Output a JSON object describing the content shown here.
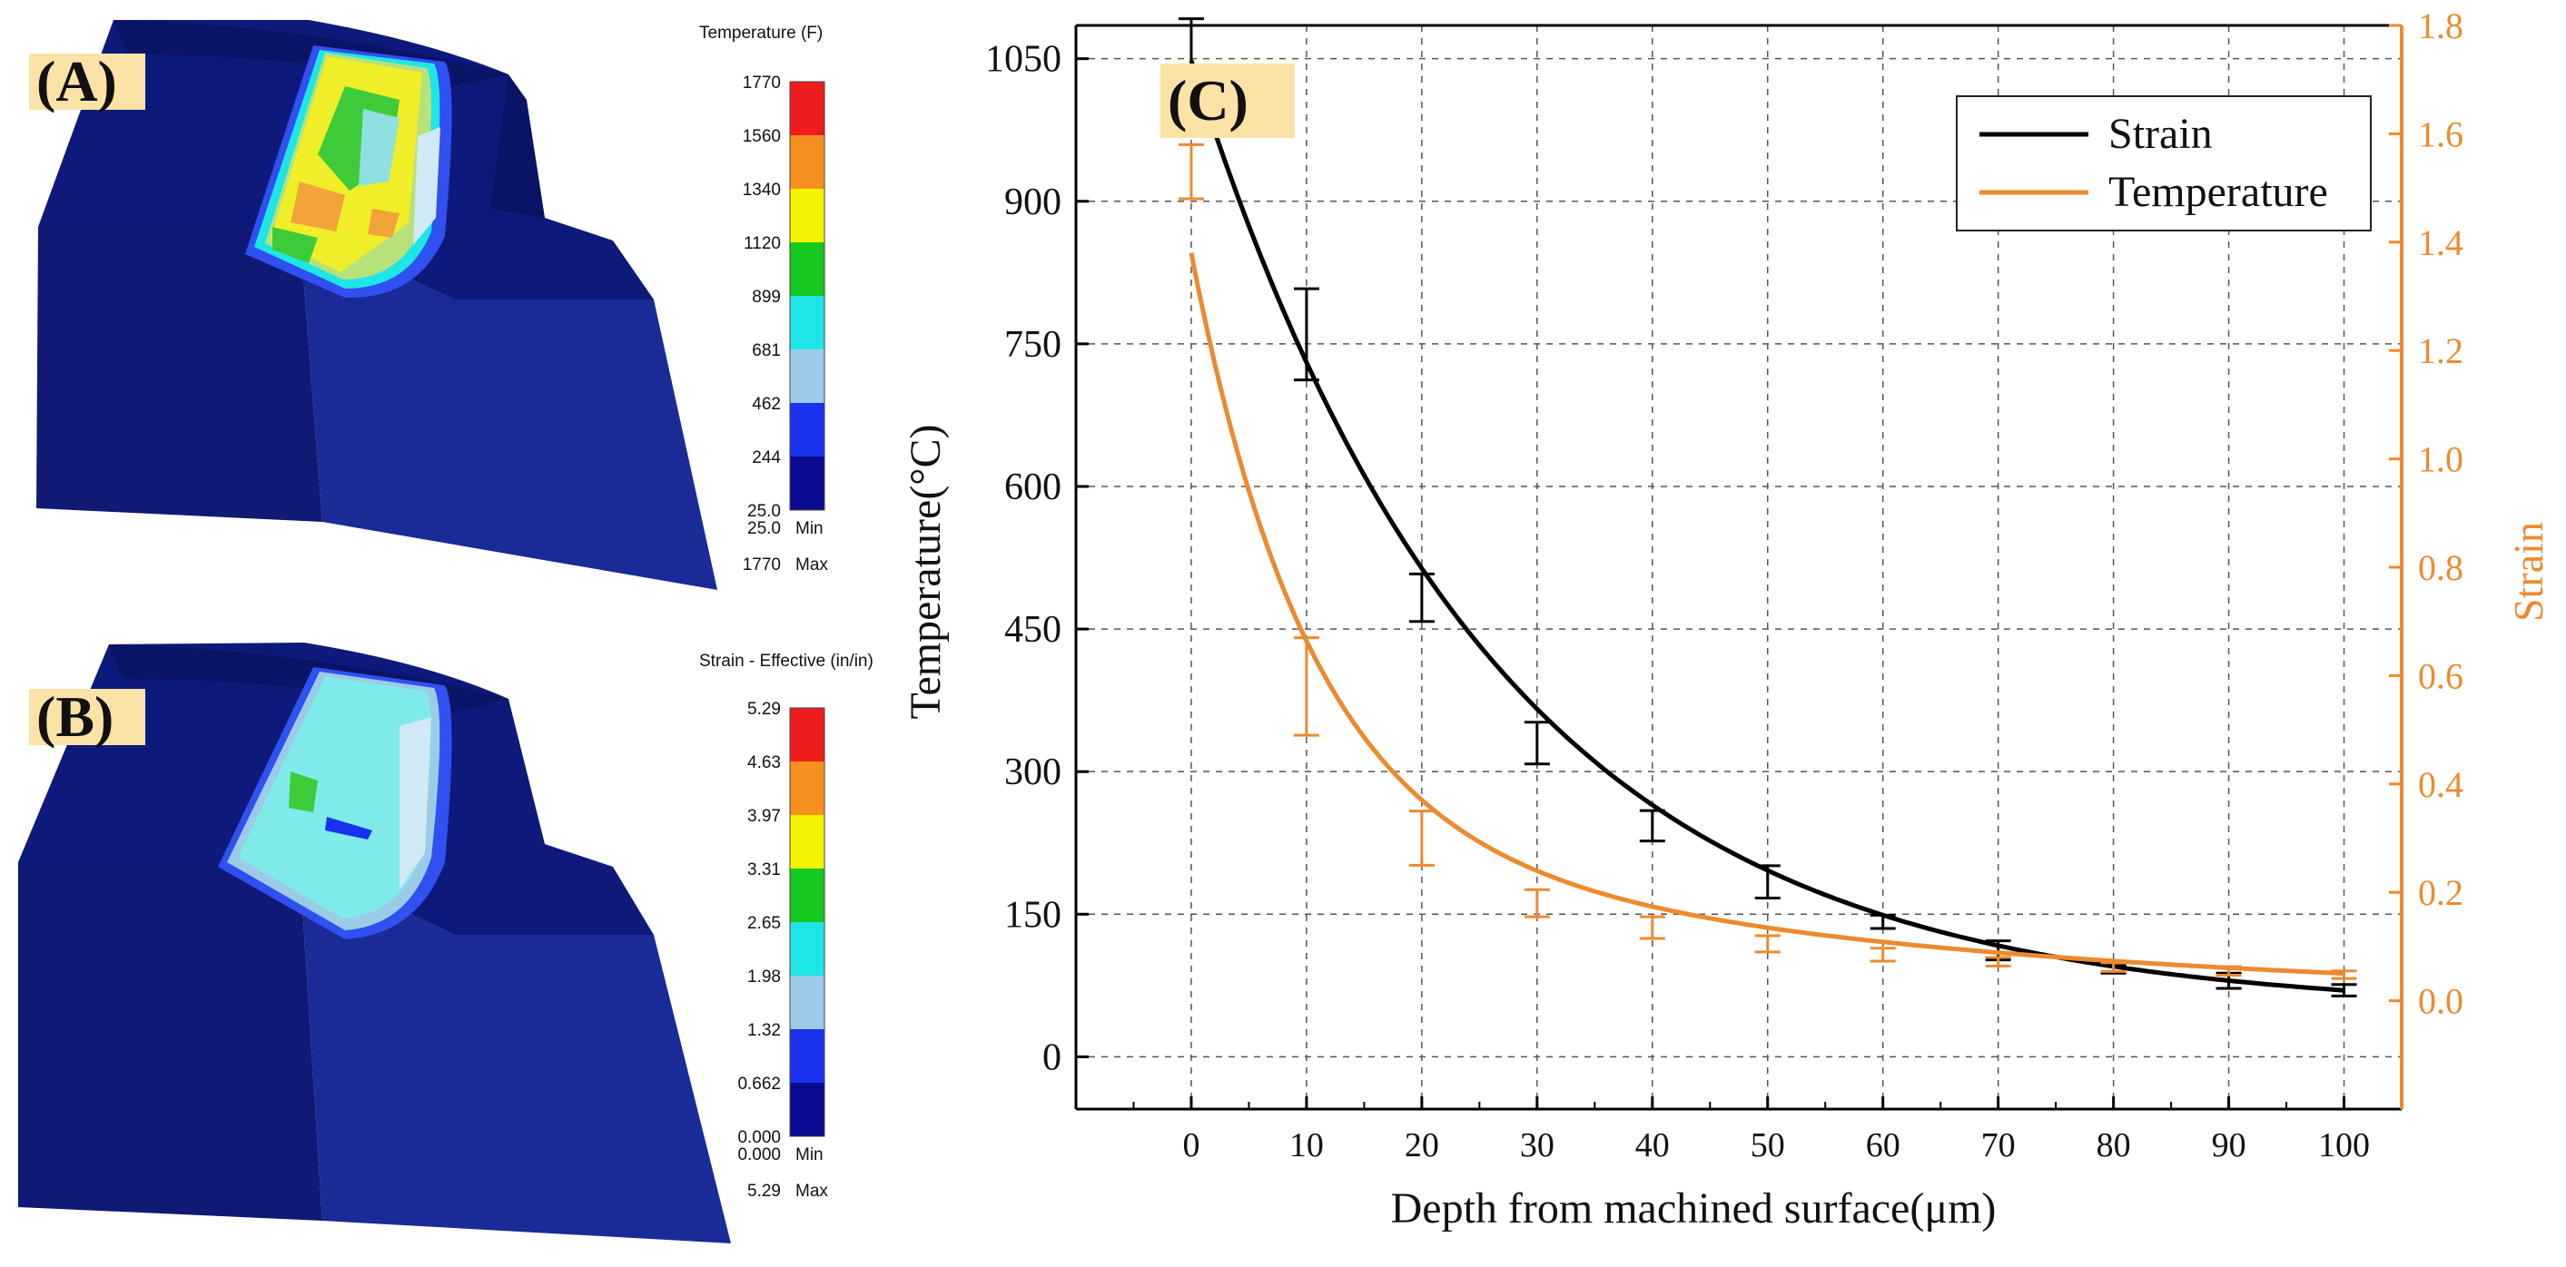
{
  "panels": {
    "a": {
      "label": "(A)",
      "legend_title": "Temperature (F)",
      "ticks": [
        "1770",
        "1560",
        "1340",
        "1120",
        "899",
        "681",
        "462",
        "244",
        "25.0"
      ],
      "min_value": "25.0",
      "min_label": "Min",
      "max_value": "1770",
      "max_label": "Max",
      "colors": [
        "#ee1c1c",
        "#f7901e",
        "#f4f400",
        "#14c81e",
        "#1ee6e6",
        "#9bcbe6",
        "#1a32ee",
        "#0a0a90"
      ]
    },
    "b": {
      "label": "(B)",
      "legend_title": "Strain - Effective (in/in)",
      "ticks": [
        "5.29",
        "4.63",
        "3.97",
        "3.31",
        "2.65",
        "1.98",
        "1.32",
        "0.662",
        "0.000"
      ],
      "min_value": "0.000",
      "min_label": "Min",
      "max_value": "5.29",
      "max_label": "Max",
      "colors": [
        "#ee1c1c",
        "#f7901e",
        "#f4f400",
        "#14c81e",
        "#1ee6e6",
        "#9bcbe6",
        "#1a32ee",
        "#0a0a90"
      ]
    },
    "c": {
      "label": "(C)"
    }
  },
  "chart_data": {
    "type": "line",
    "panel": "(C)",
    "xlabel": "Depth from machined surface(μm)",
    "ylabel": "Temperature(°C)",
    "y2label": "Strain",
    "x": [
      0,
      10,
      20,
      30,
      40,
      50,
      60,
      70,
      80,
      90,
      100
    ],
    "xlim": [
      -10,
      105
    ],
    "ylim": [
      -55,
      1085
    ],
    "y2lim": [
      -0.2,
      1.8
    ],
    "yticks": [
      0,
      150,
      300,
      450,
      600,
      750,
      900,
      1050
    ],
    "y2ticks": [
      0.0,
      0.2,
      0.4,
      0.6,
      0.8,
      1.0,
      1.2,
      1.4,
      1.6,
      1.8
    ],
    "xticks": [
      0,
      10,
      20,
      30,
      40,
      50,
      60,
      70,
      80,
      90,
      100
    ],
    "grid": true,
    "legend_position": "top-right",
    "series": [
      {
        "name": "Strain",
        "color": "#000000",
        "axis": "left",
        "curve": {
          "a": 1000,
          "k": 0.0382,
          "c": 48
        },
        "points": [
          1050,
          760,
          483,
          330,
          243,
          184,
          142,
          112,
          92,
          80,
          70
        ],
        "errors": [
          42,
          48,
          25,
          22,
          16,
          17,
          7,
          10,
          4,
          8,
          6
        ]
      },
      {
        "name": "Temperature",
        "color": "#ed8a2e",
        "axis": "right",
        "curve": {
          "a1": 1.06,
          "k1": 0.098,
          "a2": 0.32,
          "k2": 0.0185,
          "c": 0.0
        },
        "points": [
          1.53,
          0.58,
          0.3,
          0.18,
          0.135,
          0.105,
          0.085,
          0.072,
          0.062,
          0.055,
          0.048
        ],
        "errors": [
          0.05,
          0.09,
          0.05,
          0.025,
          0.02,
          0.015,
          0.012,
          0.008,
          0.008,
          0.008,
          0.007
        ]
      }
    ]
  }
}
